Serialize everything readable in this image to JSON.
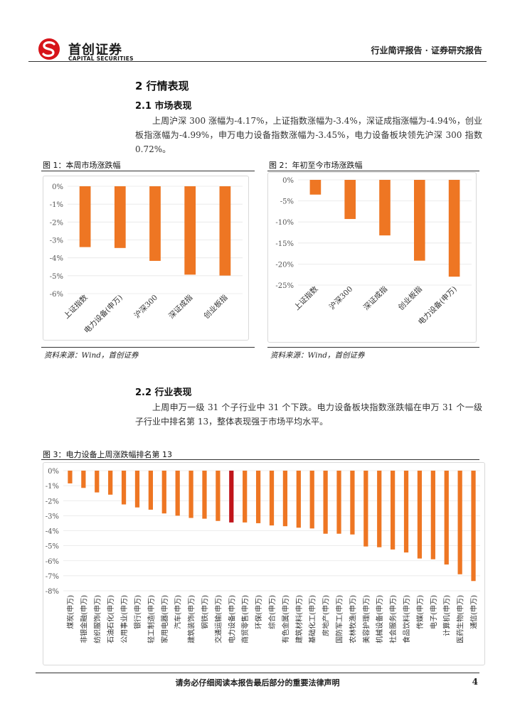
{
  "header": {
    "logo_cn": "首创证券",
    "logo_en": "CAPITAL SECURITIES",
    "report_type": "行业简评报告 · 证券研究报告"
  },
  "section": {
    "title": "2  行情表现",
    "sub1": "2.1  市场表现",
    "para1": "上周沪深 300 涨幅为-4.17%，上证指数涨幅为-3.4%，深证成指涨幅为-4.94%，创业板指涨幅为-4.99%，申万电力设备指数涨幅为-3.45%，电力设备板块领先沪深 300 指数 0.72%。",
    "sub2": "2.2  行业表现",
    "para2": "上周申万一级 31 个子行业中 31 个下跌。电力设备板块指数涨跌幅在申万 31 个一级子行业中排名第 13，整体表现强于市场平均水平。"
  },
  "figures": {
    "fig1_caption": "图 1：本周市场涨跌幅",
    "fig2_caption": "图 2：年初至今市场涨跌幅",
    "fig3_caption": "图 3：电力设备上周涨跌幅排名第 13",
    "source1": "资料来源：Wind，首创证券",
    "source2": "资料来源：Wind，首创证券"
  },
  "footer": {
    "disclaimer": "请务必仔细阅读本报告最后部分的重要法律声明",
    "page": "4"
  },
  "colors": {
    "bar": "#EE7623",
    "highlight": "#C0151B",
    "brand_red": "#D7141A"
  },
  "chart_data": [
    {
      "type": "bar",
      "title": "图 1：本周市场涨跌幅",
      "categories": [
        "上证指数",
        "电力设备(申万)",
        "沪深300",
        "深证成指",
        "创业板指"
      ],
      "values": [
        -3.4,
        -3.45,
        -4.17,
        -4.94,
        -4.99
      ],
      "ylim": [
        -6,
        0
      ],
      "yticks": [
        0,
        -1,
        -2,
        -3,
        -4,
        -5,
        -6
      ],
      "tick_labels": [
        "0%",
        "-1%",
        "-2%",
        "-3%",
        "-4%",
        "-5%",
        "-6%"
      ],
      "unit": "%"
    },
    {
      "type": "bar",
      "title": "图 2：年初至今市场涨跌幅",
      "categories": [
        "上证指数",
        "沪深300",
        "深证成指",
        "创业板指",
        "电力设备(申万)"
      ],
      "values": [
        -3.5,
        -9.3,
        -13.2,
        -19.2,
        -23.0
      ],
      "ylim": [
        -25,
        0
      ],
      "yticks": [
        0,
        -5,
        -10,
        -15,
        -20,
        -25
      ],
      "tick_labels": [
        "0%",
        "-5%",
        "-10%",
        "-15%",
        "-20%",
        "-25%"
      ],
      "unit": "%"
    },
    {
      "type": "bar",
      "title": "图 3：电力设备上周涨跌幅排名第 13",
      "categories": [
        "煤炭(申万)",
        "非银金融(申万)",
        "纺织服饰(申万)",
        "石油石化(申万)",
        "公用事业(申万)",
        "银行(申万)",
        "轻工制造(申万)",
        "家用电器(申万)",
        "汽车(申万)",
        "建筑装饰(申万)",
        "钢铁(申万)",
        "交通运输(申万)",
        "电力设备(申万)",
        "商贸零售(申万)",
        "环保(申万)",
        "综合(申万)",
        "有色金属(申万)",
        "建筑材料(申万)",
        "基础化工(申万)",
        "房地产(申万)",
        "国防军工(申万)",
        "农林牧渔(申万)",
        "美容护理(申万)",
        "机械设备(申万)",
        "社会服务(申万)",
        "食品饮料(申万)",
        "传媒(申万)",
        "电子(申万)",
        "计算机(申万)",
        "医药生物(申万)",
        "通信(申万)"
      ],
      "values": [
        -0.85,
        -1.15,
        -1.45,
        -1.6,
        -2.25,
        -2.45,
        -2.6,
        -2.85,
        -3.0,
        -3.15,
        -3.2,
        -3.35,
        -3.45,
        -3.45,
        -3.5,
        -3.65,
        -3.7,
        -3.8,
        -3.85,
        -4.2,
        -4.2,
        -4.25,
        -5.05,
        -5.1,
        -5.25,
        -5.45,
        -5.85,
        -5.9,
        -6.25,
        -6.9,
        -7.35
      ],
      "highlight": "电力设备(申万)",
      "ylim": [
        -8,
        0
      ],
      "yticks": [
        0,
        -1,
        -2,
        -3,
        -4,
        -5,
        -6,
        -7,
        -8
      ],
      "tick_labels": [
        "0%",
        "-1%",
        "-2%",
        "-3%",
        "-4%",
        "-5%",
        "-6%",
        "-7%",
        "-8%"
      ],
      "unit": "%"
    }
  ]
}
